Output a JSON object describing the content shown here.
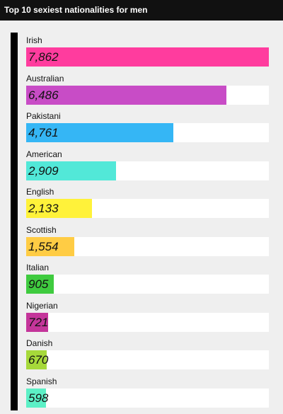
{
  "chart_data": {
    "type": "bar",
    "orientation": "horizontal",
    "title": "Top 10 sexiest nationalities for men",
    "categories": [
      "Irish",
      "Australian",
      "Pakistani",
      "American",
      "English",
      "Scottish",
      "Italian",
      "Nigerian",
      "Danish",
      "Spanish"
    ],
    "values": [
      7862,
      6486,
      4761,
      2909,
      2133,
      1554,
      905,
      721,
      670,
      598
    ],
    "value_labels": [
      "7,862",
      "6,486",
      "4,761",
      "2,909",
      "2,133",
      "1,554",
      "905",
      "721",
      "670",
      "598"
    ],
    "colors": [
      "#ff3c9e",
      "#c84cc6",
      "#35b6f5",
      "#52e8d8",
      "#fff23a",
      "#ffcc44",
      "#3fcb3f",
      "#c4359a",
      "#a6d93a",
      "#5cf0c6"
    ],
    "xlim": [
      0,
      7862
    ],
    "grid": false,
    "legend": "none"
  }
}
